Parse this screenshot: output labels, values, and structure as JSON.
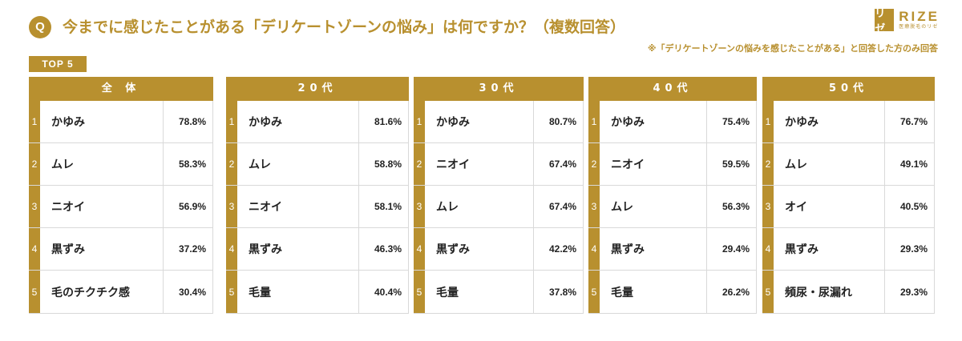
{
  "header": {
    "badge": "Q",
    "question": "今までに感じたことがある「デリケートゾーンの悩み」は何ですか？（複数回答）",
    "note": "※「デリケートゾーンの悩みを感じたことがある」と回答した方のみ回答",
    "logo_word": "RIZE",
    "logo_mark": "リゼ",
    "logo_sub": "医療脱毛のリゼ"
  },
  "top_label": "TOP 5",
  "colors": {
    "accent": "#b8902f"
  },
  "chart_data": {
    "type": "table",
    "title": "今までに感じたことがある「デリケートゾーンの悩み」は何ですか？（複数回答）",
    "ranks": [
      "1",
      "2",
      "3",
      "4",
      "5"
    ],
    "groups": [
      {
        "name": "全 体",
        "items": [
          {
            "label": "かゆみ",
            "value": "78.8%"
          },
          {
            "label": "ムレ",
            "value": "58.3%"
          },
          {
            "label": "ニオイ",
            "value": "56.9%"
          },
          {
            "label": "黒ずみ",
            "value": "37.2%"
          },
          {
            "label": "毛のチクチク感",
            "value": "30.4%"
          }
        ]
      },
      {
        "name": "20代",
        "items": [
          {
            "label": "かゆみ",
            "value": "81.6%"
          },
          {
            "label": "ムレ",
            "value": "58.8%"
          },
          {
            "label": "ニオイ",
            "value": "58.1%"
          },
          {
            "label": "黒ずみ",
            "value": "46.3%"
          },
          {
            "label": "毛量",
            "value": "40.4%"
          }
        ]
      },
      {
        "name": "30代",
        "items": [
          {
            "label": "かゆみ",
            "value": "80.7%"
          },
          {
            "label": "ニオイ",
            "value": "67.4%"
          },
          {
            "label": "ムレ",
            "value": "67.4%"
          },
          {
            "label": "黒ずみ",
            "value": "42.2%"
          },
          {
            "label": "毛量",
            "value": "37.8%"
          }
        ]
      },
      {
        "name": "40代",
        "items": [
          {
            "label": "かゆみ",
            "value": "75.4%"
          },
          {
            "label": "ニオイ",
            "value": "59.5%"
          },
          {
            "label": "ムレ",
            "value": "56.3%"
          },
          {
            "label": "黒ずみ",
            "value": "29.4%"
          },
          {
            "label": "毛量",
            "value": "26.2%"
          }
        ]
      },
      {
        "name": "50代",
        "items": [
          {
            "label": "かゆみ",
            "value": "76.7%"
          },
          {
            "label": "ムレ",
            "value": "49.1%"
          },
          {
            "label": "オイ",
            "value": "40.5%"
          },
          {
            "label": "黒ずみ",
            "value": "29.3%"
          },
          {
            "label": "頻尿・尿漏れ",
            "value": "29.3%"
          }
        ]
      }
    ]
  }
}
